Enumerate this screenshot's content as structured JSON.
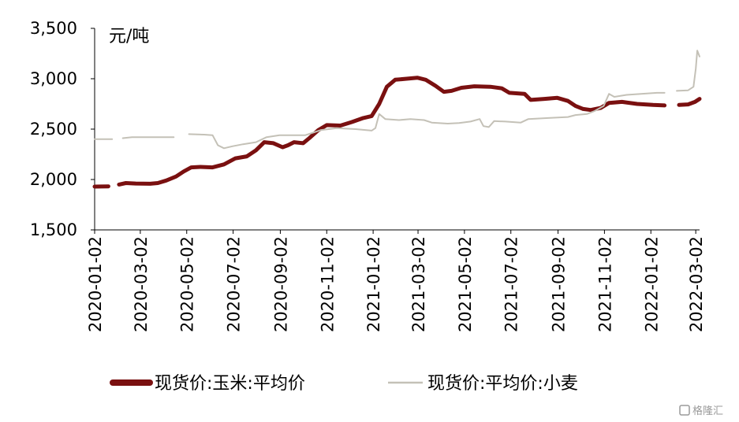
{
  "chart_data": {
    "type": "line",
    "unit_label": "元/吨",
    "ylim": [
      1500,
      3500
    ],
    "y_ticks": [
      {
        "value": 3500,
        "label": "3,500"
      },
      {
        "value": 3000,
        "label": "3,000"
      },
      {
        "value": 2500,
        "label": "2,500"
      },
      {
        "value": 2000,
        "label": "2,000"
      },
      {
        "value": 1500,
        "label": "1,500"
      }
    ],
    "x_range": [
      "2020-01-02",
      "2022-03-07"
    ],
    "x_ticks": [
      "2020-01-02",
      "2020-03-02",
      "2020-05-02",
      "2020-07-02",
      "2020-09-02",
      "2020-11-02",
      "2021-01-02",
      "2021-03-02",
      "2021-05-02",
      "2021-07-02",
      "2021-09-02",
      "2021-11-02",
      "2022-01-02",
      "2022-03-02"
    ],
    "grid": false,
    "legend_position": "bottom",
    "series": [
      {
        "name": "现货价:玉米:平均价",
        "color": "#7a1010",
        "line_width": "thick",
        "points": [
          [
            "2020-01-02",
            1930
          ],
          [
            "2020-01-20",
            1932
          ],
          [
            "2020-01-23",
            null
          ],
          [
            "2020-02-03",
            1950
          ],
          [
            "2020-02-12",
            1965
          ],
          [
            "2020-02-25",
            1960
          ],
          [
            "2020-03-15",
            1958
          ],
          [
            "2020-03-25",
            1965
          ],
          [
            "2020-04-05",
            1990
          ],
          [
            "2020-04-18",
            2030
          ],
          [
            "2020-04-28",
            2080
          ],
          [
            "2020-05-08",
            2120
          ],
          [
            "2020-05-20",
            2125
          ],
          [
            "2020-06-05",
            2120
          ],
          [
            "2020-06-20",
            2150
          ],
          [
            "2020-07-05",
            2210
          ],
          [
            "2020-07-20",
            2230
          ],
          [
            "2020-08-01",
            2290
          ],
          [
            "2020-08-12",
            2370
          ],
          [
            "2020-08-24",
            2360
          ],
          [
            "2020-09-05",
            2320
          ],
          [
            "2020-09-12",
            2340
          ],
          [
            "2020-09-20",
            2370
          ],
          [
            "2020-10-02",
            2360
          ],
          [
            "2020-10-10",
            2410
          ],
          [
            "2020-10-22",
            2490
          ],
          [
            "2020-11-02",
            2540
          ],
          [
            "2020-11-20",
            2535
          ],
          [
            "2020-12-05",
            2570
          ],
          [
            "2020-12-20",
            2610
          ],
          [
            "2020-12-31",
            2630
          ],
          [
            "2021-01-10",
            2750
          ],
          [
            "2021-01-20",
            2920
          ],
          [
            "2021-01-31",
            2990
          ],
          [
            "2021-02-15",
            3000
          ],
          [
            "2021-03-01",
            3010
          ],
          [
            "2021-03-12",
            2990
          ],
          [
            "2021-03-25",
            2930
          ],
          [
            "2021-04-05",
            2870
          ],
          [
            "2021-04-15",
            2880
          ],
          [
            "2021-04-28",
            2910
          ],
          [
            "2021-05-15",
            2925
          ],
          [
            "2021-06-05",
            2920
          ],
          [
            "2021-06-20",
            2905
          ],
          [
            "2021-06-30",
            2860
          ],
          [
            "2021-07-20",
            2850
          ],
          [
            "2021-07-28",
            2790
          ],
          [
            "2021-08-15",
            2800
          ],
          [
            "2021-09-01",
            2810
          ],
          [
            "2021-09-15",
            2780
          ],
          [
            "2021-09-25",
            2730
          ],
          [
            "2021-10-05",
            2700
          ],
          [
            "2021-10-15",
            2690
          ],
          [
            "2021-10-28",
            2710
          ],
          [
            "2021-11-08",
            2760
          ],
          [
            "2021-11-25",
            2770
          ],
          [
            "2021-12-15",
            2750
          ],
          [
            "2022-01-05",
            2740
          ],
          [
            "2022-01-20",
            2735
          ],
          [
            "2022-01-27",
            null
          ],
          [
            "2022-02-08",
            2740
          ],
          [
            "2022-02-20",
            2745
          ],
          [
            "2022-03-01",
            2770
          ],
          [
            "2022-03-07",
            2800
          ]
        ]
      },
      {
        "name": "现货价:平均价:小麦",
        "color": "#c4c1b7",
        "line_width": "thin",
        "points": [
          [
            "2020-01-02",
            2400
          ],
          [
            "2020-01-25",
            2400
          ],
          [
            "2020-01-29",
            null
          ],
          [
            "2020-02-08",
            2410
          ],
          [
            "2020-02-20",
            2420
          ],
          [
            "2020-03-10",
            2420
          ],
          [
            "2020-03-25",
            2420
          ],
          [
            "2020-04-15",
            2420
          ],
          [
            "2020-04-27",
            null
          ],
          [
            "2020-05-05",
            2450
          ],
          [
            "2020-05-25",
            2445
          ],
          [
            "2020-06-05",
            2440
          ],
          [
            "2020-06-12",
            2340
          ],
          [
            "2020-06-20",
            2310
          ],
          [
            "2020-07-01",
            2330
          ],
          [
            "2020-07-15",
            2350
          ],
          [
            "2020-08-01",
            2370
          ],
          [
            "2020-08-15",
            2420
          ],
          [
            "2020-09-01",
            2440
          ],
          [
            "2020-09-20",
            2440
          ],
          [
            "2020-10-05",
            2440
          ],
          [
            "2020-10-25",
            2490
          ],
          [
            "2020-11-15",
            2510
          ],
          [
            "2020-12-10",
            2500
          ],
          [
            "2020-12-31",
            2485
          ],
          [
            "2021-01-05",
            2510
          ],
          [
            "2021-01-10",
            2650
          ],
          [
            "2021-01-18",
            2600
          ],
          [
            "2021-02-05",
            2590
          ],
          [
            "2021-02-20",
            2600
          ],
          [
            "2021-03-10",
            2590
          ],
          [
            "2021-03-20",
            2565
          ],
          [
            "2021-04-10",
            2555
          ],
          [
            "2021-04-25",
            2560
          ],
          [
            "2021-05-10",
            2575
          ],
          [
            "2021-05-22",
            2600
          ],
          [
            "2021-05-27",
            2530
          ],
          [
            "2021-06-03",
            2520
          ],
          [
            "2021-06-10",
            2580
          ],
          [
            "2021-06-25",
            2575
          ],
          [
            "2021-07-15",
            2565
          ],
          [
            "2021-07-25",
            2600
          ],
          [
            "2021-08-20",
            2610
          ],
          [
            "2021-09-15",
            2620
          ],
          [
            "2021-09-25",
            2640
          ],
          [
            "2021-10-10",
            2650
          ],
          [
            "2021-10-20",
            2680
          ],
          [
            "2021-11-01",
            2730
          ],
          [
            "2021-11-08",
            2850
          ],
          [
            "2021-11-15",
            2820
          ],
          [
            "2021-12-01",
            2840
          ],
          [
            "2021-12-20",
            2850
          ],
          [
            "2022-01-10",
            2860
          ],
          [
            "2022-01-20",
            2860
          ],
          [
            "2022-01-27",
            null
          ],
          [
            "2022-02-05",
            2880
          ],
          [
            "2022-02-20",
            2885
          ],
          [
            "2022-02-27",
            2920
          ],
          [
            "2022-03-02",
            3100
          ],
          [
            "2022-03-04",
            3280
          ],
          [
            "2022-03-07",
            3220
          ]
        ]
      }
    ]
  },
  "watermark": "格隆汇"
}
